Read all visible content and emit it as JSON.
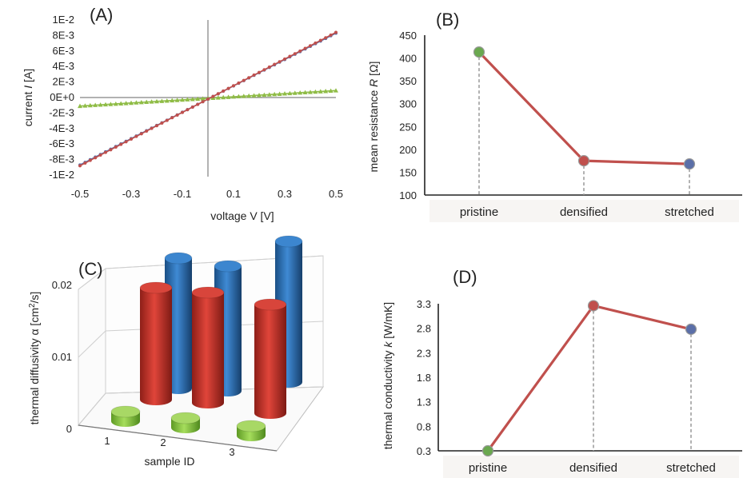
{
  "chart_data": [
    {
      "panel": "(A)",
      "type": "line",
      "xlabel": "voltage V [V]",
      "ylabel_pre": "current ",
      "ylabel_var": "I",
      "ylabel_post": " [A]",
      "xlim": [
        -0.5,
        0.5
      ],
      "ylim": [
        -0.01,
        0.01
      ],
      "x_ticks": [
        -0.5,
        -0.3,
        -0.1,
        0.1,
        0.3,
        0.5
      ],
      "x_tick_labels": [
        "-0.5",
        "-0.3",
        "-0.1",
        "0.1",
        "0.3",
        "0.5"
      ],
      "y_ticks": [
        0.01,
        0.008,
        0.006,
        0.004,
        0.002,
        0,
        -0.002,
        -0.004,
        -0.006,
        -0.008,
        -0.01
      ],
      "y_tick_labels": [
        "1E-2",
        "8E-3",
        "6E-3",
        "4E-3",
        "2E-3",
        "0E+0",
        "-2E-3",
        "-4E-3",
        "-6E-3",
        "-8E-3",
        "-1E-2"
      ],
      "series": [
        {
          "name": "red",
          "color": "#c0504d",
          "x_start": -0.5,
          "x_end": 0.5,
          "y_start": -0.0088,
          "y_end": 0.0084,
          "n_points": 51
        },
        {
          "name": "blue",
          "color": "#4f6fad",
          "x_start": -0.5,
          "x_end": 0.5,
          "y_start": -0.0087,
          "y_end": 0.0083,
          "n_points": 51
        },
        {
          "name": "green",
          "color": "#8fbc46",
          "x_start": -0.5,
          "x_end": 0.5,
          "y_start": -0.0011,
          "y_end": 0.0009,
          "n_points": 51
        }
      ]
    },
    {
      "panel": "(B)",
      "type": "line",
      "categories": [
        "pristine",
        "densified",
        "stretched"
      ],
      "values": [
        413,
        175,
        168
      ],
      "point_colors": [
        "#6aa84f",
        "#c0504d",
        "#5b6fa8"
      ],
      "line_color": "#c0504d",
      "ylabel_pre": "mean resistance ",
      "ylabel_var": "R",
      "ylabel_post": " [Ω]",
      "ylim": [
        100,
        450
      ],
      "y_ticks": [
        450,
        400,
        350,
        300,
        250,
        200,
        150,
        100
      ],
      "y_tick_labels": [
        "450",
        "400",
        "350",
        "300",
        "250",
        "200",
        "150",
        "100"
      ]
    },
    {
      "panel": "(C)",
      "type": "bar",
      "categories": [
        "1",
        "2",
        "3"
      ],
      "series": [
        {
          "name": "green",
          "color": "#8cc63f",
          "values": [
            0.0012,
            0.0012,
            0.0012
          ]
        },
        {
          "name": "red",
          "color": "#c0392b",
          "values": [
            0.014,
            0.0138,
            0.0136
          ]
        },
        {
          "name": "blue",
          "color": "#2e6fb0",
          "values": [
            0.0163,
            0.0156,
            0.0176
          ]
        }
      ],
      "xlabel": "sample ID",
      "ylabel_pre": "thermal diffusivity α  [cm",
      "ylabel_sup": "2",
      "ylabel_post": "/s]",
      "ylim": [
        0,
        0.02
      ],
      "y_ticks": [
        0.02,
        0.01,
        0
      ],
      "y_tick_labels": [
        "0.02",
        "0.01",
        "0"
      ]
    },
    {
      "panel": "(D)",
      "type": "line",
      "categories": [
        "pristine",
        "densified",
        "stretched"
      ],
      "values": [
        0.3,
        3.26,
        2.78
      ],
      "point_colors": [
        "#6aa84f",
        "#c0504d",
        "#5b6fa8"
      ],
      "line_color": "#c0504d",
      "ylabel_pre": "thermal conductivity ",
      "ylabel_var": "k",
      "ylabel_post": "  [W/mK]",
      "ylim": [
        0.3,
        3.3
      ],
      "y_ticks": [
        3.3,
        2.8,
        2.3,
        1.8,
        1.3,
        0.8,
        0.3
      ],
      "y_tick_labels": [
        "3.3",
        "2.8",
        "2.3",
        "1.8",
        "1.3",
        "0.8",
        "0.3"
      ]
    }
  ]
}
